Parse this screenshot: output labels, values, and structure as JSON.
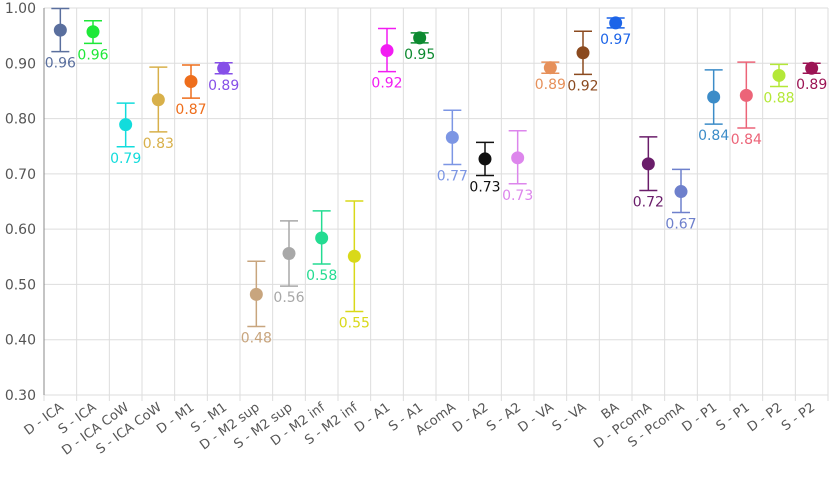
{
  "chart_data": {
    "type": "scatter",
    "title": "",
    "xlabel": "",
    "ylabel": "",
    "ylim": [
      0.3,
      1.0
    ],
    "yticks": [
      "0.30",
      "0.40",
      "0.50",
      "0.60",
      "0.70",
      "0.80",
      "0.90",
      "1.00"
    ],
    "grid": true,
    "categories": [
      "D - ICA",
      "S - ICA",
      "D - ICA CoW",
      "S - ICA CoW",
      "D - M1",
      "S - M1",
      "D - M2 sup",
      "S - M2 sup",
      "D - M2 inf",
      "S - M2 inf",
      "D - A1",
      "S - A1",
      "AcomA",
      "D - A2",
      "S - A2",
      "D - VA",
      "S - VA",
      "BA",
      "D - PcomA",
      "S - PcomA",
      "D - P1",
      "S - P1",
      "D - P2",
      "S - P2"
    ],
    "values": [
      0.96,
      0.957,
      0.789,
      0.834,
      0.867,
      0.891,
      0.482,
      0.556,
      0.584,
      0.551,
      0.923,
      0.946,
      0.766,
      0.727,
      0.729,
      0.892,
      0.919,
      0.973,
      0.718,
      0.668,
      0.839,
      0.842,
      0.878,
      0.891
    ],
    "error_low": [
      0.921,
      0.936,
      0.749,
      0.776,
      0.837,
      0.881,
      0.424,
      0.497,
      0.537,
      0.451,
      0.885,
      0.937,
      0.717,
      0.697,
      0.682,
      0.882,
      0.88,
      0.964,
      0.67,
      0.63,
      0.79,
      0.783,
      0.858,
      0.882
    ],
    "error_high": [
      0.999,
      0.977,
      0.828,
      0.893,
      0.897,
      0.901,
      0.542,
      0.615,
      0.633,
      0.651,
      0.963,
      0.955,
      0.815,
      0.757,
      0.778,
      0.902,
      0.958,
      0.982,
      0.767,
      0.708,
      0.888,
      0.902,
      0.898,
      0.9
    ],
    "data_labels": [
      "0.96",
      "0.96",
      "0.79",
      "0.83",
      "0.87",
      "0.89",
      "0.48",
      "0.56",
      "0.58",
      "0.55",
      "0.92",
      "0.95",
      "0.77",
      "0.73",
      "0.73",
      "0.89",
      "0.92",
      "0.97",
      "0.72",
      "0.67",
      "0.84",
      "0.84",
      "0.88",
      "0.89"
    ],
    "colors": [
      "#5a6f9e",
      "#1ee838",
      "#12dcdc",
      "#d8b04a",
      "#ee6e1c",
      "#8650e8",
      "#c8a57e",
      "#a8a8a8",
      "#24dc92",
      "#d9d919",
      "#f21cf2",
      "#0d8a30",
      "#7c96e4",
      "#111111",
      "#dd86ec",
      "#e6905a",
      "#8b4a1f",
      "#1c64e8",
      "#6a1d6a",
      "#6e80cc",
      "#3c8cc8",
      "#ec6478",
      "#b4e838",
      "#9c1454"
    ]
  }
}
